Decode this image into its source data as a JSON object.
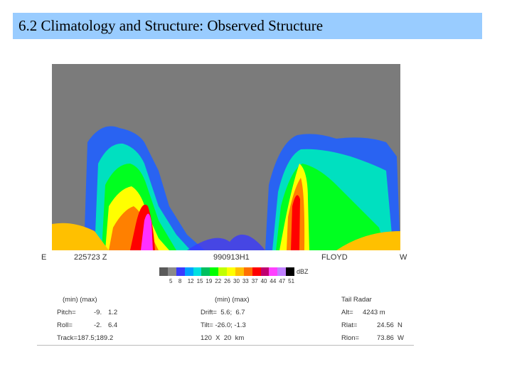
{
  "slide": {
    "title": "6.2 Climatology and Structure: Observed Structure"
  },
  "radar_plot": {
    "left_dir": "E",
    "time": "225723 Z",
    "flight_id": "990913H1",
    "storm": "FLOYD",
    "right_dir": "W",
    "colorbar_unit": "dBZ",
    "colorbar_ticks": [
      "5",
      "8",
      "12",
      "15",
      "19",
      "22",
      "26",
      "30",
      "33",
      "37",
      "40",
      "44",
      "47",
      "51"
    ],
    "colorbar_colors": [
      "#5a5a5a",
      "#8a8a8a",
      "#3a3aff",
      "#00a0ff",
      "#00e0e0",
      "#00c060",
      "#00ff00",
      "#c0ff00",
      "#ffff00",
      "#ffc000",
      "#ff7000",
      "#ff0000",
      "#c00070",
      "#ff40ff",
      "#c080ff",
      "#000000"
    ]
  },
  "stats": {
    "col1_header": "(min) (max)",
    "pitch_label": "Pitch=",
    "pitch_min": "-9.",
    "pitch_max": "1.2",
    "roll_label": "Roll=",
    "roll_min": "-2.",
    "roll_max": "6.4",
    "track": "Track=187.5;189.2",
    "col2_header": "(min) (max)",
    "drift": "Drift=  5.6;  6.7",
    "tilt": "Tilt= -26.0; -1.3",
    "dims": "120  X  20  km",
    "col3_header": "Tail Radar",
    "alt_label": "Alt=",
    "alt_value": "4243 m",
    "rlat_label": "Rlat=",
    "rlat_value": "24.56  N",
    "rlon_label": "Rlon=",
    "rlon_value": "73.86  W"
  }
}
